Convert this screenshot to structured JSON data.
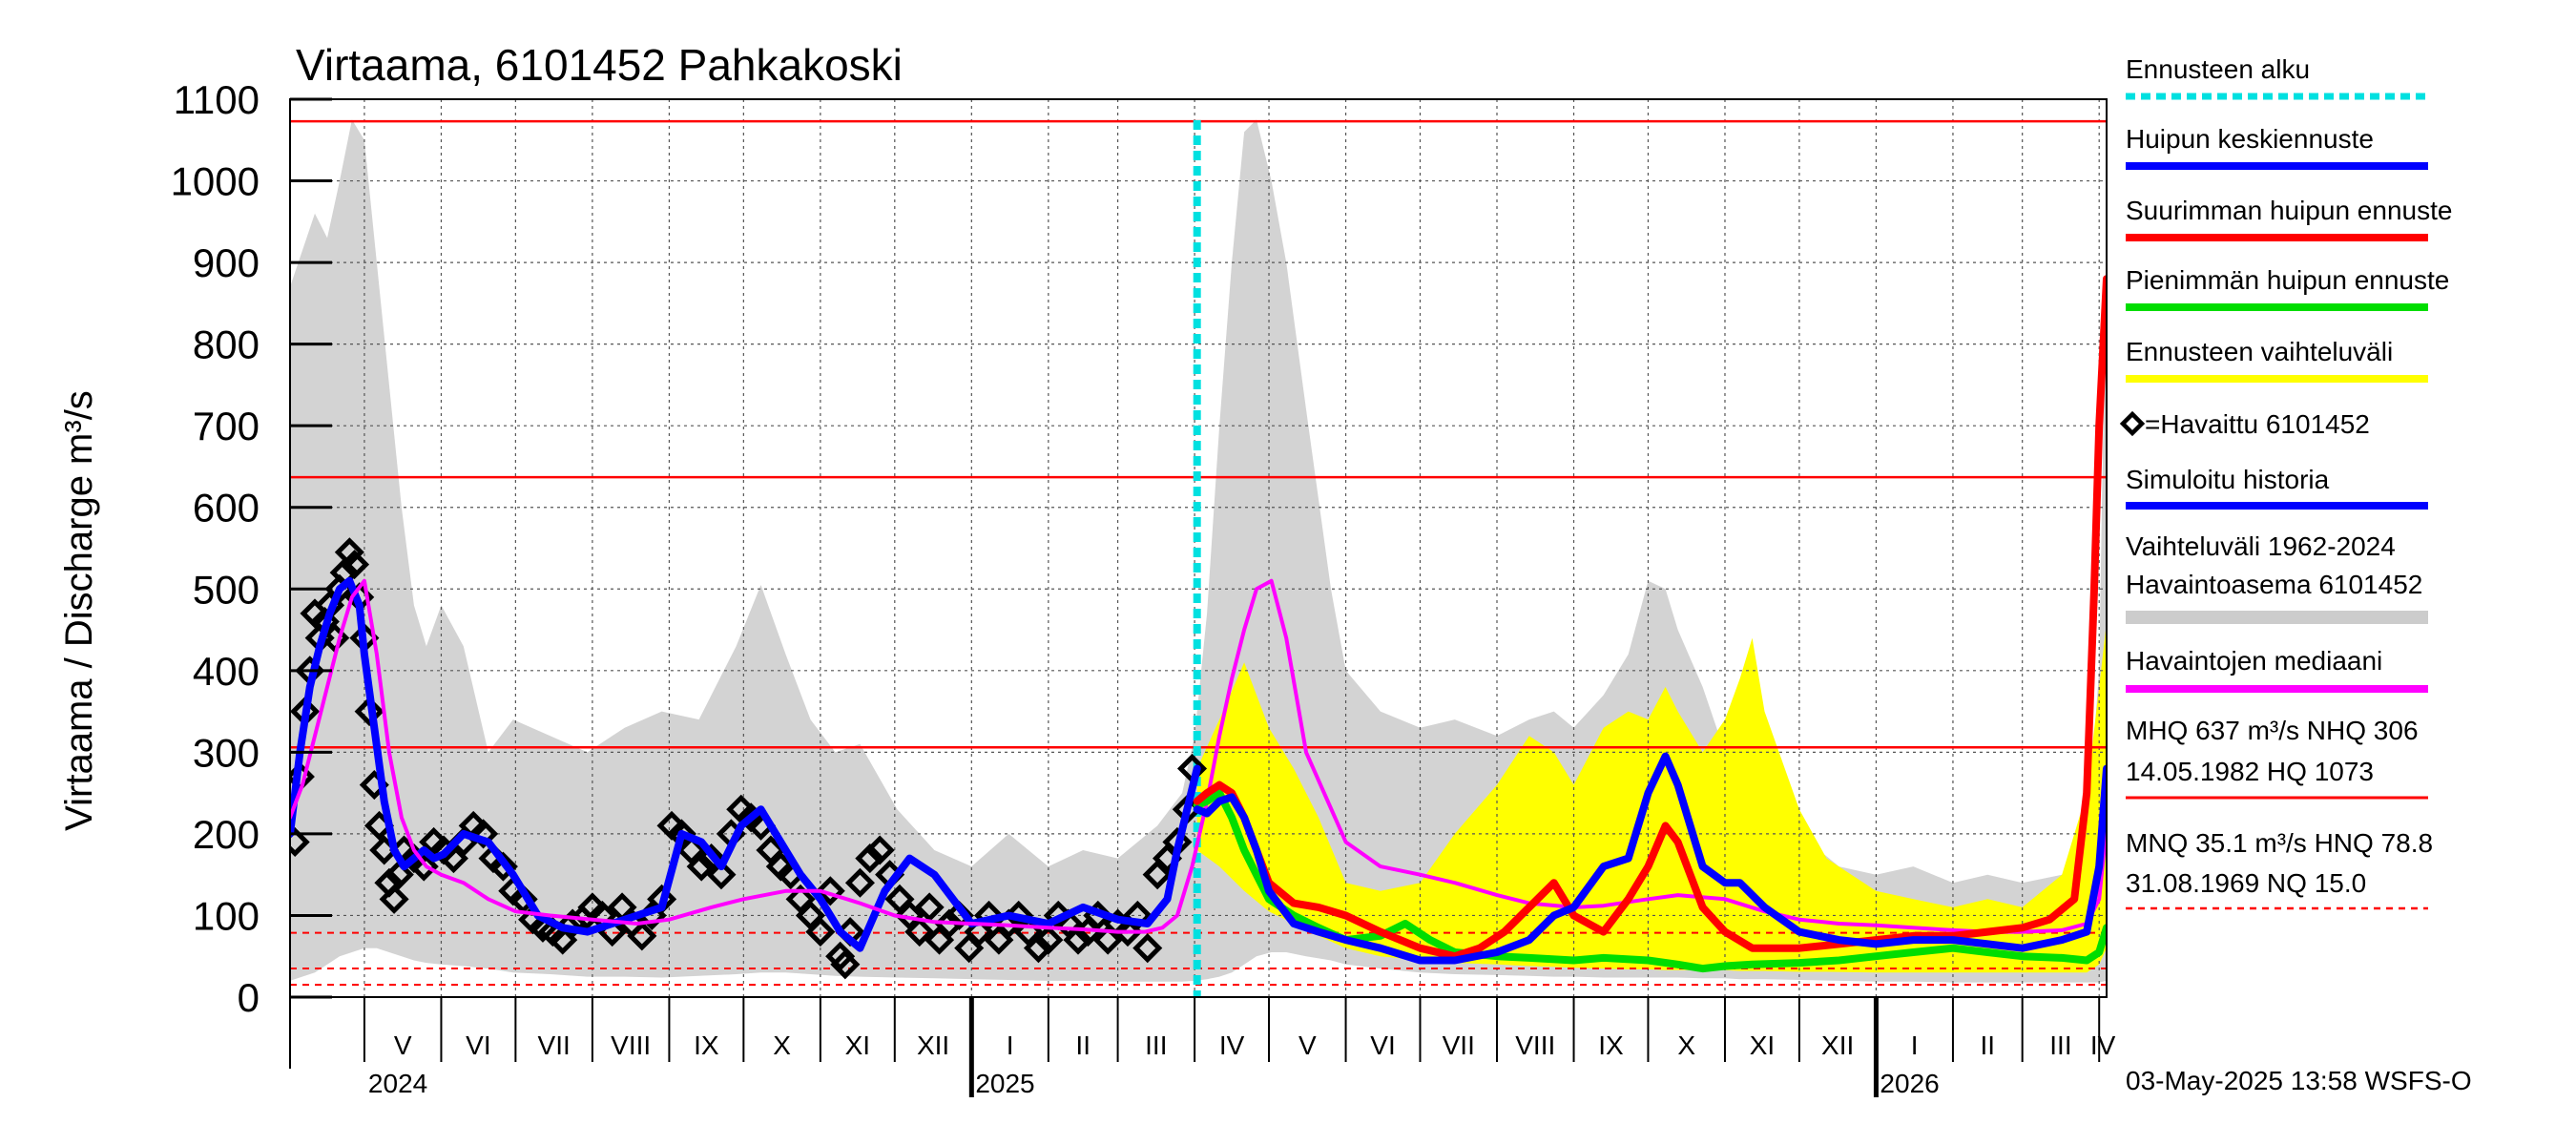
{
  "chart_data": {
    "type": "line",
    "title": "Virtaama, 6101452 Pahkakoski",
    "ylabel": "Virtaama / Discharge   m³/s",
    "ylim": [
      0,
      1100
    ],
    "yticks": [
      0,
      100,
      200,
      300,
      400,
      500,
      600,
      700,
      800,
      900,
      1000,
      1100
    ],
    "x_start_day": -30,
    "x_end_day": 703,
    "forecast_start_day": 336,
    "months": [
      {
        "label": "V",
        "start": 0
      },
      {
        "label": "VI",
        "start": 31
      },
      {
        "label": "VII",
        "start": 61
      },
      {
        "label": "VIII",
        "start": 92
      },
      {
        "label": "IX",
        "start": 123
      },
      {
        "label": "X",
        "start": 153
      },
      {
        "label": "XI",
        "start": 184
      },
      {
        "label": "XII",
        "start": 214
      },
      {
        "label": "I",
        "start": 245
      },
      {
        "label": "II",
        "start": 276
      },
      {
        "label": "III",
        "start": 304
      },
      {
        "label": "IV",
        "start": 335
      },
      {
        "label": "V",
        "start": 365
      },
      {
        "label": "VI",
        "start": 396
      },
      {
        "label": "VII",
        "start": 426
      },
      {
        "label": "VIII",
        "start": 457
      },
      {
        "label": "IX",
        "start": 488
      },
      {
        "label": "X",
        "start": 518
      },
      {
        "label": "XI",
        "start": 549
      },
      {
        "label": "XII",
        "start": 579
      },
      {
        "label": "I",
        "start": 610
      },
      {
        "label": "II",
        "start": 641
      },
      {
        "label": "III",
        "start": 669
      },
      {
        "label": "IV",
        "start": 700
      }
    ],
    "years": [
      {
        "label": "2024",
        "day": 0
      },
      {
        "label": "2025",
        "day": 245
      },
      {
        "label": "2026",
        "day": 610
      }
    ],
    "year_boundaries": [
      245,
      610
    ],
    "reference_lines": [
      {
        "name": "HQ",
        "value": 1073,
        "style": "solid"
      },
      {
        "name": "MHQ",
        "value": 637,
        "style": "solid"
      },
      {
        "name": "NHQ",
        "value": 306,
        "style": "solid"
      },
      {
        "name": "HNQ",
        "value": 78.8,
        "style": "dashed"
      },
      {
        "name": "MNQ",
        "value": 35.1,
        "style": "dashed"
      },
      {
        "name": "NQ",
        "value": 15.0,
        "style": "dashed"
      }
    ],
    "range_band": {
      "name": "Vaihteluväli 1962-2024",
      "x": [
        -30,
        -20,
        -15,
        -10,
        -5,
        0,
        5,
        10,
        15,
        20,
        25,
        31,
        40,
        50,
        60,
        75,
        90,
        105,
        120,
        135,
        150,
        160,
        170,
        180,
        190,
        200,
        215,
        230,
        245,
        260,
        276,
        290,
        304,
        320,
        330,
        335,
        340,
        345,
        350,
        355,
        360,
        366,
        372,
        380,
        390,
        396,
        410,
        426,
        440,
        457,
        470,
        480,
        488,
        500,
        510,
        518,
        525,
        530,
        540,
        549,
        555,
        565,
        579,
        595,
        610,
        625,
        641,
        655,
        669,
        685,
        695,
        700,
        703
      ],
      "high": [
        870,
        960,
        930,
        1000,
        1075,
        1050,
        900,
        750,
        600,
        480,
        430,
        480,
        430,
        300,
        340,
        320,
        300,
        330,
        350,
        340,
        430,
        505,
        420,
        340,
        300,
        310,
        230,
        180,
        160,
        200,
        160,
        180,
        170,
        210,
        250,
        320,
        470,
        700,
        900,
        1060,
        1075,
        1000,
        900,
        720,
        500,
        400,
        350,
        330,
        340,
        320,
        340,
        350,
        330,
        370,
        420,
        510,
        500,
        450,
        380,
        300,
        250,
        230,
        200,
        160,
        150,
        160,
        140,
        150,
        140,
        150,
        200,
        400,
        950
      ],
      "low": [
        20,
        30,
        40,
        50,
        55,
        60,
        60,
        55,
        50,
        45,
        42,
        40,
        38,
        35,
        30,
        28,
        25,
        25,
        24,
        26,
        28,
        30,
        30,
        28,
        26,
        25,
        24,
        23,
        22,
        21,
        20,
        20,
        19,
        19,
        19,
        20,
        22,
        25,
        30,
        40,
        50,
        55,
        55,
        50,
        45,
        40,
        35,
        30,
        28,
        27,
        26,
        25,
        25,
        24,
        24,
        24,
        24,
        24,
        23,
        23,
        22,
        22,
        21,
        20,
        19,
        19,
        18,
        18,
        18,
        18,
        18,
        18,
        20
      ]
    },
    "forecast_band": {
      "name": "Ennusteen vaihteluväli",
      "x": [
        336,
        345,
        355,
        365,
        375,
        385,
        396,
        410,
        426,
        440,
        457,
        470,
        480,
        488,
        500,
        510,
        518,
        525,
        530,
        540,
        549,
        555,
        560,
        565,
        579,
        590,
        610,
        625,
        641,
        655,
        669,
        685,
        695,
        700,
        703
      ],
      "high": [
        280,
        340,
        410,
        330,
        280,
        220,
        140,
        130,
        140,
        200,
        260,
        320,
        300,
        260,
        330,
        350,
        340,
        380,
        350,
        300,
        340,
        390,
        440,
        350,
        230,
        170,
        130,
        120,
        110,
        120,
        110,
        150,
        250,
        380,
        460
      ],
      "low": [
        180,
        160,
        130,
        105,
        90,
        75,
        60,
        50,
        45,
        42,
        40,
        38,
        37,
        36,
        35,
        34,
        34,
        33,
        33,
        33,
        33,
        32,
        32,
        32,
        31,
        31,
        30,
        30,
        30,
        30,
        30,
        30,
        30,
        40,
        60
      ]
    },
    "series": [
      {
        "name": "Havaittu 6101452",
        "type": "scatter",
        "color": "#000000",
        "x": [
          -28,
          -26,
          -24,
          -22,
          -20,
          -18,
          -16,
          -14,
          -12,
          -10,
          -8,
          -6,
          -4,
          -2,
          0,
          2,
          4,
          6,
          8,
          10,
          12,
          14,
          16,
          20,
          24,
          28,
          32,
          36,
          40,
          44,
          48,
          52,
          56,
          60,
          64,
          68,
          72,
          76,
          80,
          84,
          88,
          92,
          96,
          100,
          104,
          108,
          112,
          116,
          120,
          124,
          128,
          132,
          136,
          140,
          144,
          148,
          152,
          156,
          160,
          164,
          168,
          172,
          176,
          180,
          184,
          188,
          192,
          194,
          196,
          200,
          204,
          208,
          212,
          216,
          220,
          224,
          228,
          232,
          236,
          240,
          244,
          248,
          252,
          256,
          260,
          264,
          268,
          272,
          276,
          280,
          284,
          288,
          292,
          296,
          300,
          304,
          308,
          312,
          316,
          320,
          324,
          328,
          332,
          334
        ],
        "y": [
          190,
          270,
          350,
          400,
          470,
          440,
          460,
          480,
          440,
          500,
          520,
          545,
          530,
          490,
          440,
          350,
          260,
          210,
          180,
          140,
          120,
          150,
          180,
          170,
          160,
          190,
          180,
          170,
          190,
          210,
          200,
          170,
          160,
          130,
          120,
          95,
          85,
          80,
          70,
          90,
          95,
          110,
          100,
          80,
          110,
          90,
          75,
          100,
          120,
          210,
          200,
          180,
          160,
          170,
          150,
          200,
          230,
          220,
          210,
          180,
          160,
          150,
          120,
          100,
          80,
          130,
          50,
          40,
          80,
          140,
          170,
          180,
          150,
          120,
          100,
          80,
          110,
          70,
          90,
          100,
          60,
          80,
          100,
          70,
          90,
          100,
          80,
          60,
          70,
          100,
          90,
          70,
          80,
          100,
          70,
          90,
          80,
          100,
          60,
          150,
          170,
          190,
          230,
          280
        ]
      },
      {
        "name": "Simuloitu historia",
        "color": "#0000ff",
        "x": [
          -30,
          -26,
          -22,
          -18,
          -14,
          -10,
          -6,
          -2,
          0,
          4,
          8,
          12,
          16,
          20,
          24,
          28,
          32,
          40,
          50,
          60,
          70,
          80,
          90,
          100,
          110,
          120,
          128,
          136,
          144,
          152,
          160,
          168,
          176,
          184,
          192,
          200,
          210,
          220,
          230,
          245,
          260,
          276,
          290,
          304,
          316,
          324,
          328,
          332,
          336
        ],
        "y": [
          200,
          300,
          380,
          430,
          470,
          500,
          510,
          480,
          420,
          330,
          240,
          180,
          160,
          170,
          180,
          170,
          175,
          200,
          190,
          150,
          100,
          85,
          80,
          90,
          100,
          110,
          200,
          190,
          160,
          210,
          230,
          190,
          150,
          120,
          80,
          60,
          130,
          170,
          150,
          90,
          100,
          90,
          110,
          95,
          90,
          120,
          180,
          230,
          280
        ]
      },
      {
        "name": "Havaintojen mediaani",
        "color": "#ff00ff",
        "x": [
          -30,
          -25,
          -20,
          -15,
          -10,
          -5,
          0,
          5,
          10,
          15,
          20,
          25,
          31,
          40,
          50,
          61,
          75,
          92,
          110,
          123,
          140,
          153,
          170,
          184,
          200,
          214,
          230,
          245,
          260,
          276,
          290,
          304,
          315,
          322,
          328,
          334,
          340,
          345,
          350,
          355,
          360,
          366,
          372,
          380,
          396,
          410,
          426,
          440,
          457,
          470,
          488,
          500,
          518,
          530,
          549,
          565,
          579,
          595,
          610,
          625,
          641,
          655,
          669,
          685,
          695,
          700,
          703
        ],
        "y": [
          220,
          260,
          320,
          380,
          440,
          490,
          510,
          420,
          300,
          220,
          180,
          160,
          150,
          140,
          120,
          105,
          100,
          95,
          90,
          95,
          110,
          120,
          130,
          130,
          115,
          100,
          92,
          90,
          88,
          85,
          83,
          80,
          80,
          85,
          100,
          160,
          240,
          320,
          390,
          450,
          500,
          510,
          440,
          300,
          190,
          160,
          150,
          140,
          125,
          115,
          110,
          112,
          120,
          125,
          120,
          105,
          95,
          90,
          88,
          85,
          82,
          80,
          80,
          82,
          90,
          120,
          210
        ]
      },
      {
        "name": "Pienimmän huipun ennuste",
        "color": "#00dd00",
        "x": [
          336,
          340,
          345,
          350,
          355,
          360,
          365,
          375,
          385,
          396,
          410,
          420,
          430,
          440,
          457,
          470,
          488,
          500,
          518,
          530,
          540,
          549,
          560,
          579,
          595,
          610,
          625,
          641,
          655,
          669,
          685,
          695,
          700,
          703
        ],
        "y": [
          235,
          240,
          250,
          220,
          180,
          150,
          120,
          100,
          85,
          70,
          75,
          90,
          70,
          55,
          50,
          48,
          45,
          48,
          45,
          40,
          35,
          38,
          40,
          42,
          45,
          50,
          55,
          60,
          55,
          50,
          48,
          45,
          55,
          85
        ]
      },
      {
        "name": "Suurimman huipun ennuste",
        "color": "#ff0000",
        "x": [
          336,
          340,
          345,
          350,
          355,
          360,
          365,
          375,
          385,
          396,
          410,
          426,
          440,
          450,
          460,
          470,
          480,
          488,
          500,
          510,
          518,
          525,
          530,
          540,
          549,
          560,
          579,
          595,
          610,
          625,
          641,
          655,
          669,
          680,
          690,
          695,
          698,
          700,
          703
        ],
        "y": [
          240,
          250,
          260,
          250,
          220,
          180,
          140,
          115,
          110,
          100,
          80,
          60,
          50,
          60,
          80,
          110,
          140,
          100,
          80,
          120,
          160,
          210,
          190,
          110,
          80,
          60,
          60,
          65,
          70,
          75,
          75,
          80,
          85,
          95,
          120,
          250,
          500,
          700,
          880
        ]
      },
      {
        "name": "Huipun keskiennuste",
        "color": "#0000ff",
        "x": [
          336,
          340,
          345,
          350,
          355,
          360,
          365,
          375,
          385,
          396,
          410,
          426,
          440,
          457,
          470,
          480,
          488,
          500,
          510,
          518,
          525,
          530,
          540,
          549,
          555,
          565,
          579,
          595,
          610,
          625,
          641,
          655,
          669,
          685,
          695,
          700,
          703
        ],
        "y": [
          230,
          225,
          240,
          245,
          220,
          180,
          130,
          90,
          80,
          70,
          60,
          45,
          45,
          55,
          70,
          100,
          110,
          160,
          170,
          250,
          295,
          260,
          160,
          140,
          140,
          110,
          80,
          70,
          65,
          70,
          70,
          65,
          60,
          70,
          80,
          160,
          280
        ]
      }
    ]
  },
  "legend": [
    {
      "label": "Ennusteen alku",
      "color": "#00e0e0",
      "style": "dashed"
    },
    {
      "label": "Huipun keskiennuste",
      "color": "#0000ff",
      "style": "line"
    },
    {
      "label": "Suurimman huipun ennuste",
      "color": "#ff0000",
      "style": "line"
    },
    {
      "label": "Pienimmän huipun ennuste",
      "color": "#00dd00",
      "style": "line"
    },
    {
      "label": "Ennusteen vaihteluväli",
      "color": "#ffff00",
      "style": "line"
    },
    {
      "label": "=Havaittu 6101452",
      "color": "#000000",
      "style": "marker"
    },
    {
      "label": "Simuloitu historia",
      "color": "#0000ff",
      "style": "line"
    },
    {
      "label": "Vaihteluväli 1962-2024",
      "label2": " Havaintoasema 6101452",
      "color": "#cccccc",
      "style": "band"
    },
    {
      "label": "Havaintojen mediaani",
      "color": "#ff00ff",
      "style": "line"
    }
  ],
  "stats": {
    "line1": "MHQ  637 m³/s NHQ  306",
    "line2": "14.05.1982 HQ 1073",
    "line3": "MNQ 35.1 m³/s HNQ 78.8",
    "line4": "31.08.1969 NQ 15.0"
  },
  "footer": "03-May-2025 13:58 WSFS-O"
}
